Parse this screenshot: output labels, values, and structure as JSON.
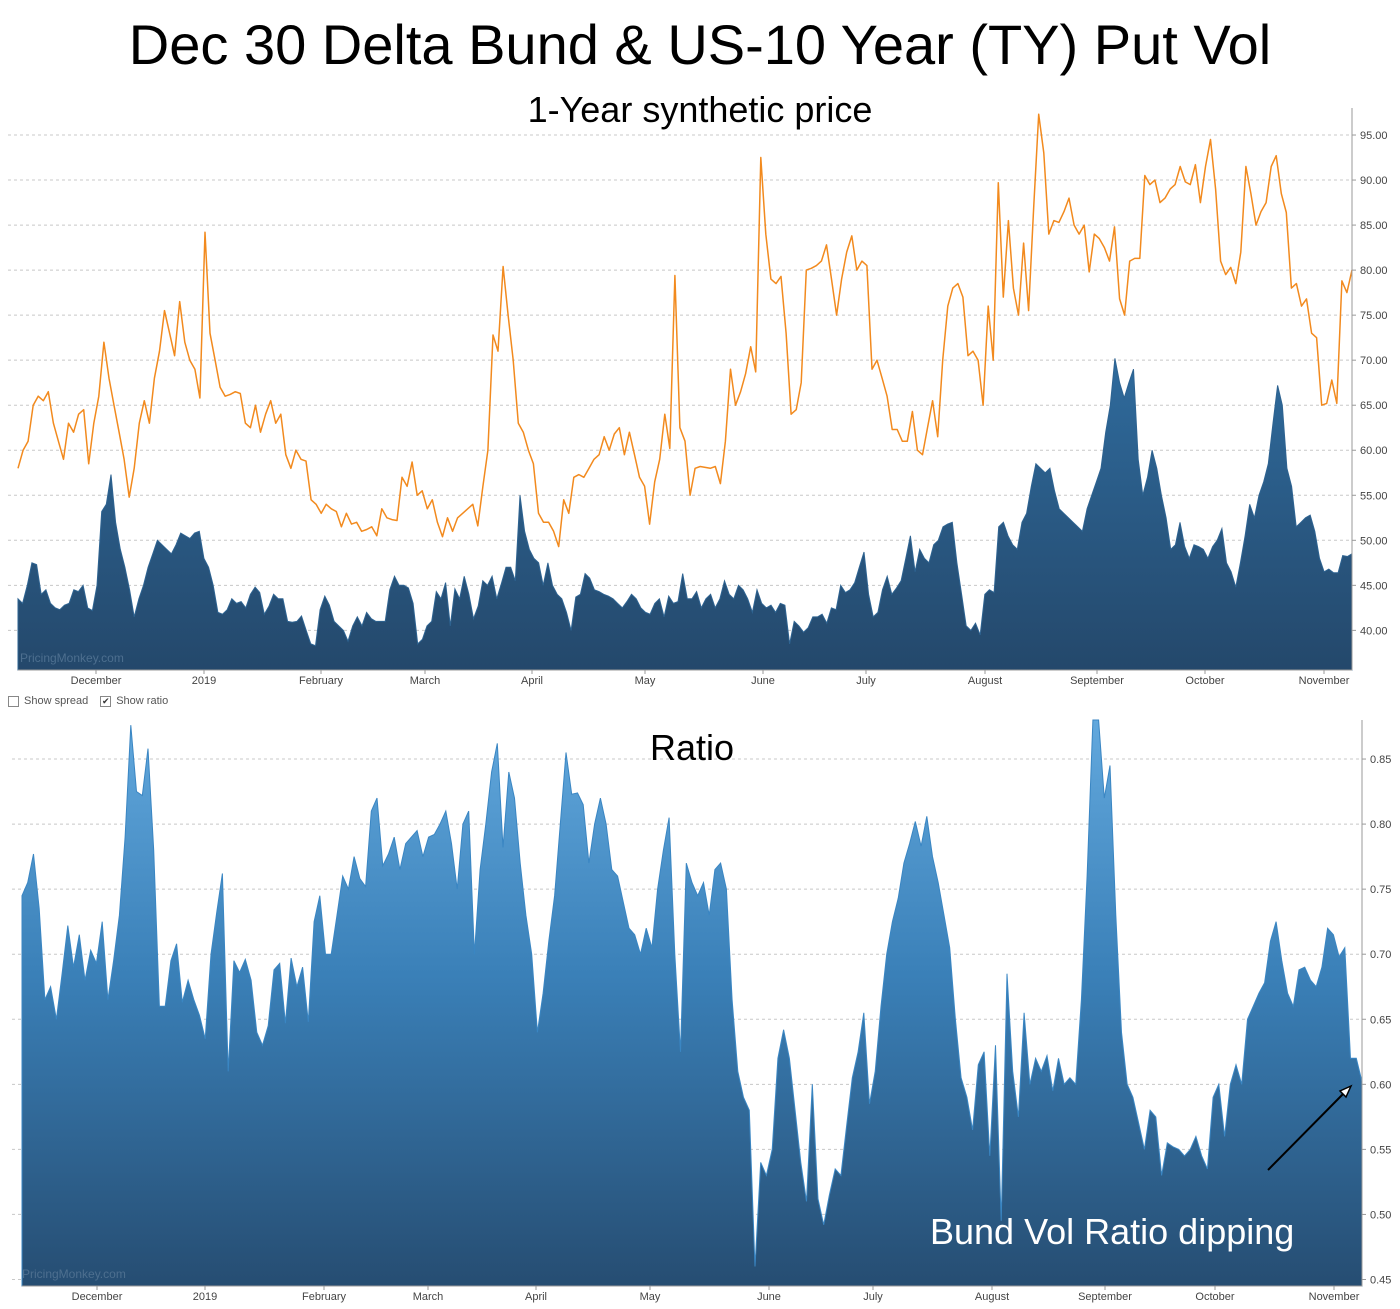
{
  "title": "Dec 30 Delta Bund & US-10 Year (TY) Put Vol",
  "controls": {
    "show_spread_label": "Show spread",
    "show_ratio_label": "Show ratio",
    "show_spread_checked": false,
    "show_ratio_checked": true
  },
  "watermark": "PricingMonkey.com",
  "annotation": "Bund Vol Ratio dipping",
  "chart_data": [
    {
      "type": "line",
      "title": "1-Year synthetic price",
      "x_tick_labels": [
        "December",
        "2019",
        "February",
        "March",
        "April",
        "May",
        "June",
        "July",
        "August",
        "September",
        "October",
        "November"
      ],
      "y_tick_labels": [
        "40.00",
        "45.00",
        "50.00",
        "55.00",
        "60.00",
        "65.00",
        "70.00",
        "75.00",
        "80.00",
        "85.00",
        "90.00",
        "95.00"
      ],
      "ylim": [
        35.6,
        98
      ],
      "series": [
        {
          "color": "#f28a1e",
          "style": "line",
          "values": [
            58,
            60,
            61,
            65,
            66,
            65.5,
            66.5,
            63,
            61,
            59,
            63,
            62,
            64,
            64.5,
            58.5,
            63,
            66,
            72,
            68,
            65,
            62,
            59,
            54.8,
            58,
            63,
            65.5,
            63,
            68,
            71,
            75.5,
            73,
            70.5,
            76.5,
            72,
            70,
            69,
            65.8,
            84.2,
            73,
            70,
            67,
            66,
            66.2,
            66.5,
            66.3,
            63,
            62.5,
            65,
            62,
            64,
            65.5,
            63,
            64,
            59.5,
            58,
            60,
            59,
            58.8,
            54.5,
            54,
            53,
            54,
            53.5,
            53.2,
            51.5,
            53,
            51.8,
            52,
            51,
            51.2,
            51.5,
            50.5,
            53.5,
            52.5,
            52.3,
            52.2,
            57,
            56,
            58.7,
            55,
            55.5,
            53.5,
            54.5,
            52,
            50.4,
            52.5,
            51,
            52.5,
            53,
            53.5,
            54,
            51.6,
            56,
            60,
            72.8,
            71,
            80.4,
            75,
            70,
            63,
            62,
            60,
            58.5,
            53,
            52,
            52,
            51,
            49.3,
            54.5,
            53,
            57,
            57.3,
            57,
            58,
            59,
            59.5,
            61.5,
            60,
            61.8,
            62.5,
            59.5,
            62,
            59.5,
            57,
            56,
            51.8,
            56.5,
            59,
            64,
            60.2,
            79.4,
            62.5,
            61,
            55,
            58,
            58.2,
            58.1,
            58,
            58.2,
            56.3,
            61,
            69,
            65,
            66.5,
            68.5,
            71.5,
            68.7,
            92.5,
            84,
            79,
            78.5,
            79.3,
            73,
            64,
            64.5,
            67.5,
            80,
            80.2,
            80.5,
            81,
            82.8,
            79,
            75,
            79,
            82,
            83.8,
            80,
            81,
            80.5,
            69,
            70,
            68,
            66,
            62.3,
            62.3,
            61,
            61,
            64.3,
            60,
            59.5,
            62.5,
            65.5,
            61.5,
            70,
            76,
            78,
            78.5,
            77,
            70.5,
            71,
            70,
            65,
            76,
            70,
            89.7,
            77,
            85.5,
            78,
            75,
            83,
            75.5,
            87,
            97.3,
            93,
            84,
            85.5,
            85.3,
            86.5,
            88,
            85,
            84,
            85,
            79.8,
            84,
            83.5,
            82.5,
            81,
            84.8,
            76.8,
            75,
            81,
            81.3,
            81.3,
            90.5,
            89.5,
            90,
            87.5,
            88,
            89,
            89.5,
            91.5,
            89.8,
            89.5,
            91.7,
            87.5,
            91.5,
            94.5,
            89,
            81,
            79.5,
            80.3,
            78.5,
            82,
            91.5,
            88.5,
            85,
            86.5,
            87.5,
            91.5,
            92.7,
            88.5,
            86.4,
            78,
            78.5,
            76,
            76.8,
            73,
            72.5,
            65,
            65.2,
            67.8,
            65.2,
            78.8,
            77.5,
            80
          ]
        },
        {
          "color": "#2e6391",
          "style": "area",
          "values": [
            43.5,
            43,
            45,
            47.5,
            47.3,
            44,
            44.5,
            43,
            42.5,
            42.3,
            42.8,
            43,
            44.5,
            44.3,
            45,
            42.5,
            42.2,
            45,
            53.2,
            54,
            57.3,
            52,
            49,
            47,
            44.5,
            41.5,
            43.5,
            45,
            47,
            48.5,
            50,
            49.5,
            49,
            48.5,
            49.5,
            50.8,
            50.5,
            50.2,
            50.8,
            51,
            48,
            47,
            45,
            42,
            41.8,
            42.3,
            43.5,
            43,
            43.2,
            42.5,
            44,
            44.8,
            44.2,
            41.8,
            42.7,
            44,
            43.5,
            43.5,
            41,
            40.9,
            41,
            41.6,
            40,
            38.5,
            38.3,
            42.3,
            43.8,
            42.8,
            41,
            40.5,
            40,
            38.8,
            40.5,
            41.5,
            40.5,
            42,
            41.3,
            41,
            41,
            41,
            44.5,
            46,
            45,
            45,
            44.7,
            43,
            38.5,
            39,
            40.5,
            41,
            44.3,
            43.5,
            45.3,
            40.5,
            44.6,
            43.5,
            46,
            44,
            41.3,
            42.7,
            45.5,
            45,
            46,
            43.5,
            45.2,
            47,
            47,
            45.5,
            55,
            51,
            49,
            48,
            47.5,
            45,
            47.5,
            45,
            44,
            43.5,
            42,
            40,
            43.7,
            44,
            46.3,
            45.8,
            44.5,
            44.3,
            44,
            43.8,
            43.5,
            43,
            42.5,
            43.2,
            44,
            43.5,
            42.5,
            42,
            41.8,
            43,
            43.5,
            41.5,
            43.8,
            43,
            43.2,
            46.3,
            43.5,
            43.5,
            44.3,
            42.5,
            43.5,
            44,
            42.5,
            43.5,
            45.5,
            44,
            43.5,
            45,
            44.5,
            43.5,
            42,
            44.5,
            43,
            42.5,
            42.8,
            42,
            43,
            42.8,
            38.5,
            41,
            40.5,
            39.8,
            40.3,
            41.5,
            41.5,
            41.8,
            40.8,
            42.5,
            42.3,
            45,
            44.2,
            44.5,
            45.3,
            47,
            48.7,
            44,
            41.5,
            42,
            44.5,
            46,
            44,
            44.7,
            45.5,
            48,
            50.5,
            46.5,
            49,
            48,
            47.5,
            49.5,
            50,
            51.5,
            51.8,
            52,
            47.5,
            44,
            40.5,
            40,
            40.8,
            39.5,
            44,
            44.5,
            44.2,
            51.5,
            52,
            50.5,
            49.5,
            49,
            52,
            53,
            56,
            58.5,
            58,
            57.5,
            58,
            55.5,
            53.5,
            53,
            52.5,
            52,
            51.5,
            51,
            53.5,
            55,
            56.5,
            58,
            62,
            65,
            70.2,
            67.5,
            65.8,
            67.5,
            69,
            59,
            55,
            57,
            60,
            58,
            55,
            52.5,
            49,
            49.5,
            52,
            49.3,
            48,
            49.5,
            49.3,
            49,
            48,
            49.3,
            50,
            51.3,
            47.5,
            46.5,
            44.8,
            47.5,
            50.5,
            54,
            52.5,
            55,
            56.5,
            58.5,
            63,
            67.2,
            65,
            58,
            56,
            51.5,
            52,
            52.5,
            52.8,
            51,
            48,
            46.5,
            46.8,
            46.4,
            46.4,
            48.3,
            48.2,
            48.5
          ]
        }
      ]
    },
    {
      "type": "area",
      "title": "Ratio",
      "x_tick_labels": [
        "December",
        "2019",
        "February",
        "March",
        "April",
        "May",
        "June",
        "July",
        "August",
        "September",
        "October",
        "November"
      ],
      "y_tick_labels": [
        "0.45",
        "0.50",
        "0.55",
        "0.60",
        "0.65",
        "0.70",
        "0.75",
        "0.80",
        "0.85"
      ],
      "ylim": [
        0.445,
        0.88
      ],
      "series": [
        {
          "color": "#3a86c3",
          "values": [
            0.745,
            0.755,
            0.777,
            0.735,
            0.665,
            0.675,
            0.65,
            0.685,
            0.722,
            0.69,
            0.715,
            0.68,
            0.703,
            0.693,
            0.725,
            0.665,
            0.695,
            0.73,
            0.79,
            0.876,
            0.825,
            0.822,
            0.858,
            0.78,
            0.66,
            0.66,
            0.695,
            0.708,
            0.663,
            0.68,
            0.665,
            0.653,
            0.635,
            0.7,
            0.732,
            0.762,
            0.61,
            0.695,
            0.686,
            0.696,
            0.68,
            0.64,
            0.63,
            0.645,
            0.688,
            0.693,
            0.647,
            0.697,
            0.675,
            0.69,
            0.648,
            0.725,
            0.745,
            0.7,
            0.7,
            0.73,
            0.76,
            0.75,
            0.775,
            0.758,
            0.752,
            0.81,
            0.82,
            0.768,
            0.777,
            0.79,
            0.765,
            0.785,
            0.79,
            0.795,
            0.775,
            0.79,
            0.792,
            0.8,
            0.81,
            0.785,
            0.75,
            0.8,
            0.81,
            0.7,
            0.765,
            0.8,
            0.84,
            0.862,
            0.782,
            0.84,
            0.82,
            0.77,
            0.73,
            0.7,
            0.64,
            0.67,
            0.71,
            0.745,
            0.8,
            0.855,
            0.823,
            0.824,
            0.815,
            0.77,
            0.8,
            0.82,
            0.8,
            0.765,
            0.76,
            0.74,
            0.72,
            0.715,
            0.7,
            0.72,
            0.705,
            0.75,
            0.78,
            0.805,
            0.7,
            0.625,
            0.77,
            0.755,
            0.745,
            0.755,
            0.73,
            0.765,
            0.77,
            0.75,
            0.665,
            0.61,
            0.59,
            0.58,
            0.46,
            0.54,
            0.53,
            0.55,
            0.62,
            0.642,
            0.62,
            0.58,
            0.54,
            0.51,
            0.6,
            0.512,
            0.492,
            0.515,
            0.535,
            0.53,
            0.568,
            0.605,
            0.625,
            0.655,
            0.585,
            0.61,
            0.66,
            0.7,
            0.725,
            0.743,
            0.77,
            0.785,
            0.802,
            0.783,
            0.806,
            0.775,
            0.755,
            0.73,
            0.705,
            0.65,
            0.605,
            0.59,
            0.565,
            0.615,
            0.625,
            0.545,
            0.63,
            0.495,
            0.685,
            0.61,
            0.575,
            0.655,
            0.6,
            0.62,
            0.61,
            0.622,
            0.595,
            0.62,
            0.6,
            0.605,
            0.6,
            0.665,
            0.76,
            0.88,
            0.88,
            0.82,
            0.845,
            0.73,
            0.64,
            0.6,
            0.59,
            0.57,
            0.55,
            0.58,
            0.575,
            0.53,
            0.555,
            0.552,
            0.55,
            0.545,
            0.55,
            0.56,
            0.545,
            0.535,
            0.59,
            0.6,
            0.56,
            0.6,
            0.615,
            0.6,
            0.65,
            0.66,
            0.67,
            0.678,
            0.71,
            0.725,
            0.695,
            0.67,
            0.66,
            0.688,
            0.69,
            0.68,
            0.675,
            0.69,
            0.72,
            0.715,
            0.698,
            0.705,
            0.62,
            0.62,
            0.602
          ]
        }
      ]
    }
  ]
}
